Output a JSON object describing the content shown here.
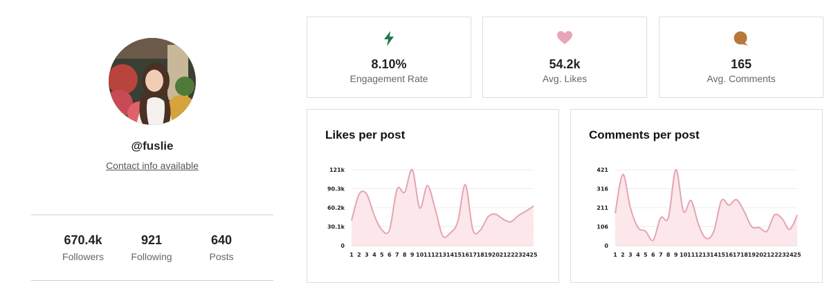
{
  "profile": {
    "handle": "@fuslie",
    "contact_label": "Contact info available",
    "stats": [
      {
        "value": "670.4k",
        "label": "Followers"
      },
      {
        "value": "921",
        "label": "Following"
      },
      {
        "value": "640",
        "label": "Posts"
      }
    ]
  },
  "metrics": [
    {
      "icon": "lightning-icon",
      "color": "#1f7a4f",
      "value": "8.10%",
      "label": "Engagement Rate"
    },
    {
      "icon": "heart-icon",
      "color": "#e9a5b8",
      "value": "54.2k",
      "label": "Avg. Likes"
    },
    {
      "icon": "comment-bubble-icon",
      "color": "#b9773a",
      "value": "165",
      "label": "Avg. Comments"
    }
  ],
  "colors": {
    "line": "#e3a4b4",
    "fill": "#fbe3e6"
  },
  "chart_data": [
    {
      "type": "area",
      "title": "Likes per post",
      "x": [
        "1",
        "2",
        "3",
        "4",
        "5",
        "6",
        "7",
        "8",
        "9",
        "10",
        "11",
        "12",
        "13",
        "14",
        "15",
        "16",
        "17",
        "18",
        "19",
        "20",
        "21",
        "22",
        "23",
        "24",
        "25"
      ],
      "yticks": [
        "0",
        "30.1k",
        "60.2k",
        "90.3k",
        "121k"
      ],
      "ylim": [
        0,
        121
      ],
      "grid": true,
      "values": [
        40,
        82,
        82,
        48,
        25,
        25,
        90,
        85,
        121,
        60,
        96,
        60,
        16,
        20,
        38,
        97,
        25,
        25,
        46,
        50,
        42,
        38,
        48,
        55,
        63
      ]
    },
    {
      "type": "area",
      "title": "Comments per post",
      "x": [
        "1",
        "2",
        "3",
        "4",
        "5",
        "6",
        "7",
        "8",
        "9",
        "10",
        "11",
        "12",
        "13",
        "14",
        "15",
        "16",
        "17",
        "18",
        "19",
        "20",
        "21",
        "22",
        "23",
        "24",
        "25"
      ],
      "yticks": [
        "0",
        "106",
        "211",
        "316",
        "421"
      ],
      "ylim": [
        0,
        421
      ],
      "grid": true,
      "values": [
        180,
        395,
        210,
        100,
        80,
        30,
        155,
        155,
        421,
        190,
        250,
        115,
        40,
        80,
        250,
        225,
        255,
        190,
        105,
        100,
        80,
        170,
        150,
        90,
        170
      ]
    }
  ]
}
